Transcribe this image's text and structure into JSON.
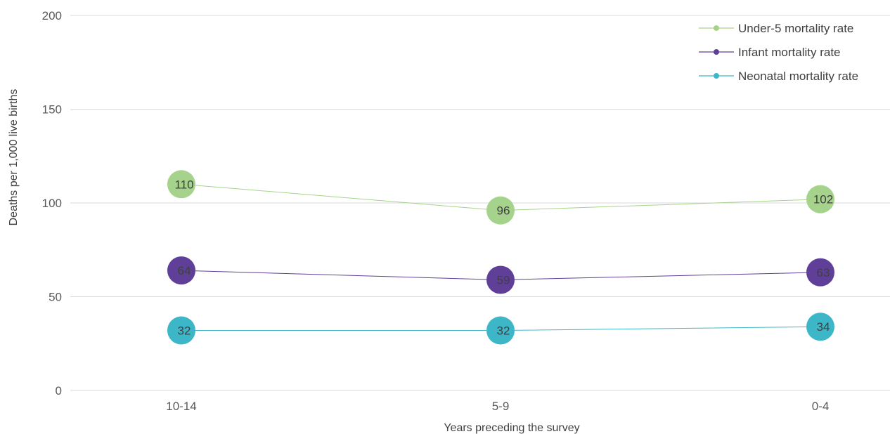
{
  "chart_data": {
    "type": "line",
    "xlabel": "Years preceding the survey",
    "ylabel": "Deaths per 1,000 live births",
    "categories": [
      "10-14",
      "5-9",
      "0-4"
    ],
    "ylim": [
      0,
      200
    ],
    "yticks": [
      0,
      50,
      100,
      150,
      200
    ],
    "grid": true,
    "legend_position": "top-right",
    "series": [
      {
        "name": "Under-5 mortality rate",
        "values": [
          110,
          96,
          102
        ],
        "color": "#a6d38b"
      },
      {
        "name": "Infant mortality rate",
        "values": [
          64,
          59,
          63
        ],
        "color": "#5f3f97"
      },
      {
        "name": "Neonatal mortality rate",
        "values": [
          32,
          32,
          34
        ],
        "color": "#3db7c8"
      }
    ]
  }
}
